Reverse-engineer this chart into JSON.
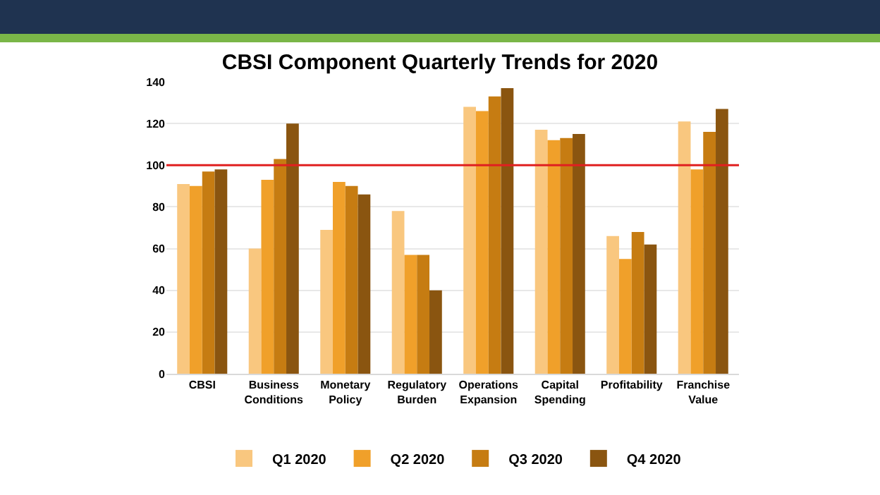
{
  "chart_data": {
    "type": "bar",
    "title": "CBSI Component Quarterly Trends for 2020",
    "categories": [
      "CBSI",
      "Business\nConditions",
      "Monetary\nPolicy",
      "Regulatory\nBurden",
      "Operations\nExpansion",
      "Capital\nSpending",
      "Profitability",
      "Franchise\nValue"
    ],
    "series": [
      {
        "name": "Q1 2020",
        "color": "#f9c77f",
        "values": [
          91,
          60,
          69,
          78,
          128,
          117,
          66,
          121
        ]
      },
      {
        "name": "Q2 2020",
        "color": "#f0a02a",
        "values": [
          90,
          93,
          92,
          57,
          126,
          112,
          55,
          98
        ]
      },
      {
        "name": "Q3 2020",
        "color": "#c67c12",
        "values": [
          97,
          103,
          90,
          57,
          133,
          113,
          68,
          116
        ]
      },
      {
        "name": "Q4 2020",
        "color": "#8a5510",
        "values": [
          98,
          120,
          86,
          40,
          137,
          115,
          62,
          127
        ]
      }
    ],
    "ylim": [
      0,
      140
    ],
    "yticks": [
      0,
      20,
      40,
      60,
      80,
      100,
      120,
      140
    ],
    "grid": "y",
    "legend": "bottom",
    "ref_lines": [
      {
        "axis": "y",
        "value": 100,
        "color": "#e02020"
      }
    ]
  }
}
